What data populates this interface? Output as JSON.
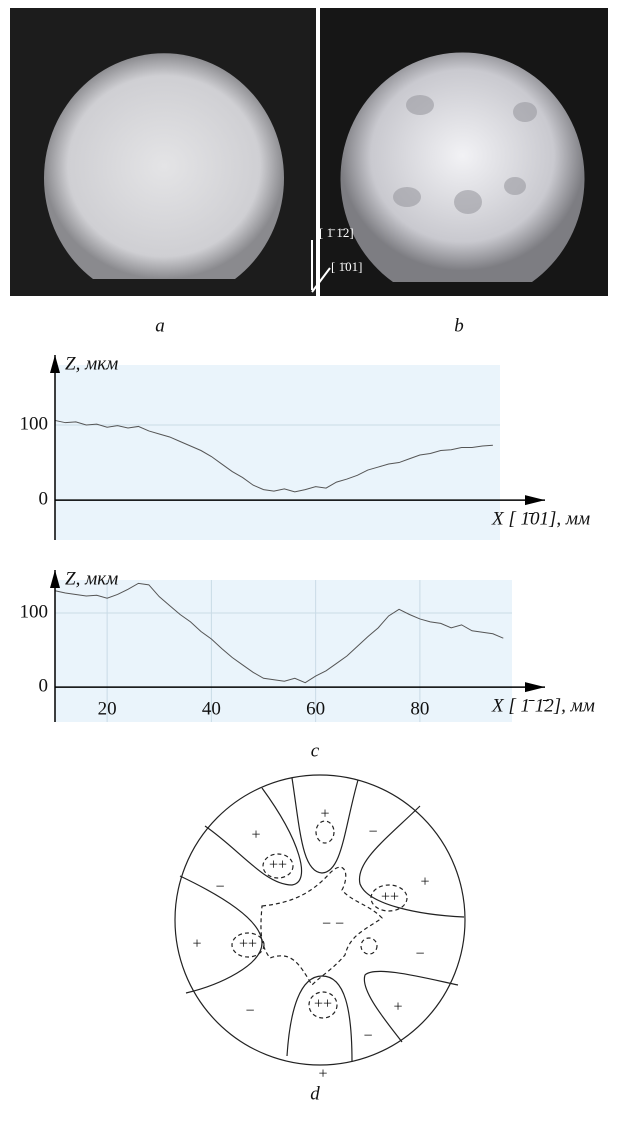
{
  "photos": {
    "captions": [
      "a",
      "b"
    ],
    "directions": [
      "[ 1̄ 1̄2]",
      "[ 1̄01]"
    ]
  },
  "chart_data": [
    {
      "type": "line",
      "y_label": "Z, мкм",
      "x_label": "X [ 1̄01], мм",
      "color": "#555555",
      "grid": true,
      "x": [
        10,
        12,
        14,
        16,
        18,
        20,
        22,
        24,
        26,
        28,
        30,
        32,
        34,
        36,
        38,
        40,
        42,
        44,
        46,
        48,
        50,
        52,
        54,
        56,
        58,
        60,
        62,
        64,
        66,
        68,
        70,
        72,
        74,
        76,
        78,
        80,
        82,
        84,
        86,
        88,
        90,
        92,
        94
      ],
      "values": [
        106,
        103,
        104,
        100,
        101,
        97,
        99,
        96,
        98,
        92,
        88,
        84,
        78,
        72,
        66,
        58,
        48,
        38,
        30,
        20,
        14,
        12,
        15,
        11,
        14,
        18,
        16,
        24,
        28,
        33,
        40,
        44,
        48,
        50,
        55,
        60,
        62,
        66,
        67,
        70,
        70,
        72,
        73
      ],
      "xlim": [
        10,
        104
      ],
      "ylim": [
        -53,
        193
      ],
      "yticks": [
        0,
        100
      ]
    },
    {
      "type": "line",
      "y_label": "Z, мкм",
      "x_label": "X [ 1̄ 1̄2], мм",
      "color": "#555555",
      "grid": true,
      "x": [
        10,
        12,
        14,
        16,
        18,
        20,
        22,
        24,
        26,
        28,
        30,
        32,
        34,
        36,
        38,
        40,
        42,
        44,
        46,
        48,
        50,
        52,
        54,
        56,
        58,
        60,
        62,
        64,
        66,
        68,
        70,
        72,
        74,
        76,
        78,
        80,
        82,
        84,
        86,
        88,
        90,
        92,
        94,
        96
      ],
      "values": [
        130,
        127,
        125,
        123,
        124,
        120,
        125,
        132,
        140,
        138,
        122,
        110,
        98,
        88,
        75,
        65,
        52,
        40,
        30,
        20,
        12,
        10,
        8,
        12,
        6,
        15,
        22,
        32,
        42,
        55,
        68,
        80,
        96,
        105,
        98,
        92,
        88,
        86,
        80,
        84,
        76,
        74,
        72,
        66
      ],
      "xlim": [
        10,
        104
      ],
      "ylim": [
        -47,
        158
      ],
      "yticks": [
        0,
        100
      ],
      "xticks": [
        20,
        40,
        60,
        80
      ]
    }
  ],
  "chart_caption": "c",
  "diagram": {
    "caption": "d",
    "labels": [
      "+",
      "−",
      "+",
      "++",
      "+",
      "++",
      "−",
      "− −",
      "++",
      "+",
      "−",
      "−",
      "++",
      "+",
      "−",
      "+"
    ]
  }
}
